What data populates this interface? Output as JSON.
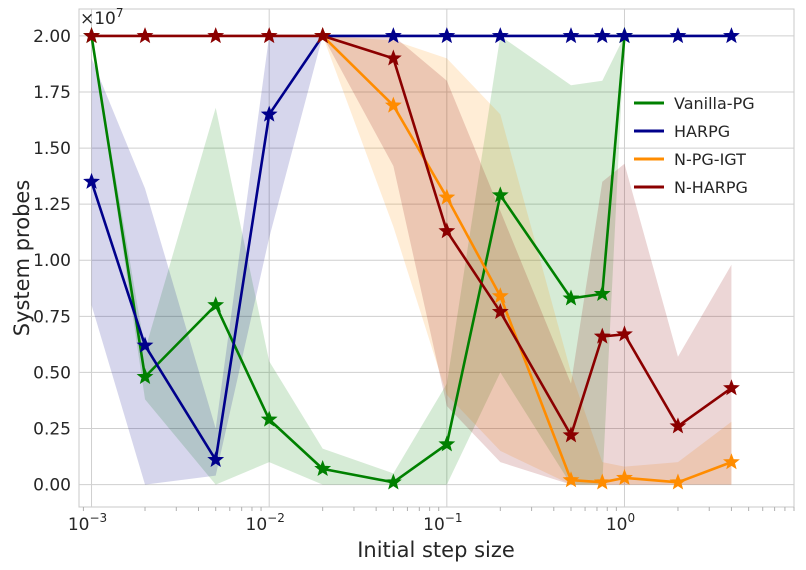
{
  "chart_data": {
    "type": "line",
    "xscale": "log",
    "xlabel": "Initial step size",
    "ylabel": "System probes",
    "offset_text": {
      "base": "×10",
      "exponent": "7"
    },
    "xlim": [
      0.00085,
      9.0
    ],
    "ylim": [
      -0.1,
      2.12
    ],
    "grid": true,
    "x_ticks": [
      {
        "value": 0.001,
        "base": "10",
        "exp": "−3"
      },
      {
        "value": 0.01,
        "base": "10",
        "exp": "−2"
      },
      {
        "value": 0.1,
        "base": "10",
        "exp": "−1"
      },
      {
        "value": 1,
        "base": "10",
        "exp": "0"
      }
    ],
    "y_ticks": [
      {
        "value": 0.0,
        "label": "0.00"
      },
      {
        "value": 0.25,
        "label": "0.25"
      },
      {
        "value": 0.5,
        "label": "0.50"
      },
      {
        "value": 0.75,
        "label": "0.75"
      },
      {
        "value": 1.0,
        "label": "1.00"
      },
      {
        "value": 1.25,
        "label": "1.25"
      },
      {
        "value": 1.5,
        "label": "1.50"
      },
      {
        "value": 1.75,
        "label": "1.75"
      },
      {
        "value": 2.0,
        "label": "2.00"
      }
    ],
    "legend_position": "right",
    "series": [
      {
        "name": "Vanilla-PG",
        "color": "#008000",
        "x": [
          0.001,
          0.002,
          0.005,
          0.01,
          0.02,
          0.05,
          0.1,
          0.2,
          0.5,
          0.75,
          1.0
        ],
        "values": [
          2.0,
          0.48,
          0.8,
          0.29,
          0.07,
          0.01,
          0.18,
          1.29,
          0.83,
          0.85,
          2.0
        ],
        "lower": [
          2.0,
          0.38,
          0.0,
          0.1,
          0.0,
          0.0,
          0.0,
          0.5,
          0.0,
          0.0,
          2.0
        ],
        "upper": [
          2.0,
          0.6,
          1.68,
          0.55,
          0.16,
          0.05,
          0.45,
          2.0,
          1.78,
          1.8,
          2.0
        ]
      },
      {
        "name": "HARPG",
        "color": "#00008B",
        "x": [
          0.001,
          0.002,
          0.005,
          0.01,
          0.02,
          0.05,
          0.1,
          0.2,
          0.5,
          0.75,
          1.0,
          2.0,
          4.0
        ],
        "values": [
          1.35,
          0.62,
          0.11,
          1.65,
          2.0,
          2.0,
          2.0,
          2.0,
          2.0,
          2.0,
          2.0,
          2.0,
          2.0
        ],
        "lower": [
          0.8,
          0.0,
          0.04,
          1.1,
          2.0,
          2.0,
          2.0,
          2.0,
          2.0,
          2.0,
          2.0,
          2.0,
          2.0
        ],
        "upper": [
          1.9,
          1.32,
          0.25,
          2.0,
          2.0,
          2.0,
          2.0,
          2.0,
          2.0,
          2.0,
          2.0,
          2.0,
          2.0
        ]
      },
      {
        "name": "N-PG-IGT",
        "color": "#FF8C00",
        "x": [
          0.02,
          0.05,
          0.1,
          0.2,
          0.5,
          0.75,
          1.0,
          2.0,
          4.0
        ],
        "values": [
          2.0,
          1.69,
          1.28,
          0.84,
          0.02,
          0.01,
          0.03,
          0.01,
          0.1
        ],
        "lower": [
          2.0,
          1.15,
          0.4,
          0.15,
          0.0,
          0.0,
          0.0,
          0.0,
          0.0
        ],
        "upper": [
          2.0,
          1.98,
          1.9,
          1.65,
          0.5,
          0.1,
          0.08,
          0.1,
          0.28
        ]
      },
      {
        "name": "N-HARPG",
        "color": "#8B0000",
        "x": [
          0.001,
          0.002,
          0.005,
          0.01,
          0.02,
          0.05,
          0.1,
          0.2,
          0.5,
          0.75,
          1.0,
          2.0,
          4.0
        ],
        "values": [
          2.0,
          2.0,
          2.0,
          2.0,
          2.0,
          1.9,
          1.13,
          0.77,
          0.22,
          0.66,
          0.67,
          0.26,
          0.43
        ],
        "lower": [
          2.0,
          2.0,
          2.0,
          2.0,
          2.0,
          1.42,
          0.35,
          0.1,
          0.0,
          0.0,
          0.0,
          0.0,
          0.0
        ],
        "upper": [
          2.0,
          2.0,
          2.0,
          2.0,
          2.0,
          2.0,
          1.8,
          1.22,
          0.45,
          1.35,
          1.43,
          0.57,
          0.98
        ]
      }
    ]
  }
}
